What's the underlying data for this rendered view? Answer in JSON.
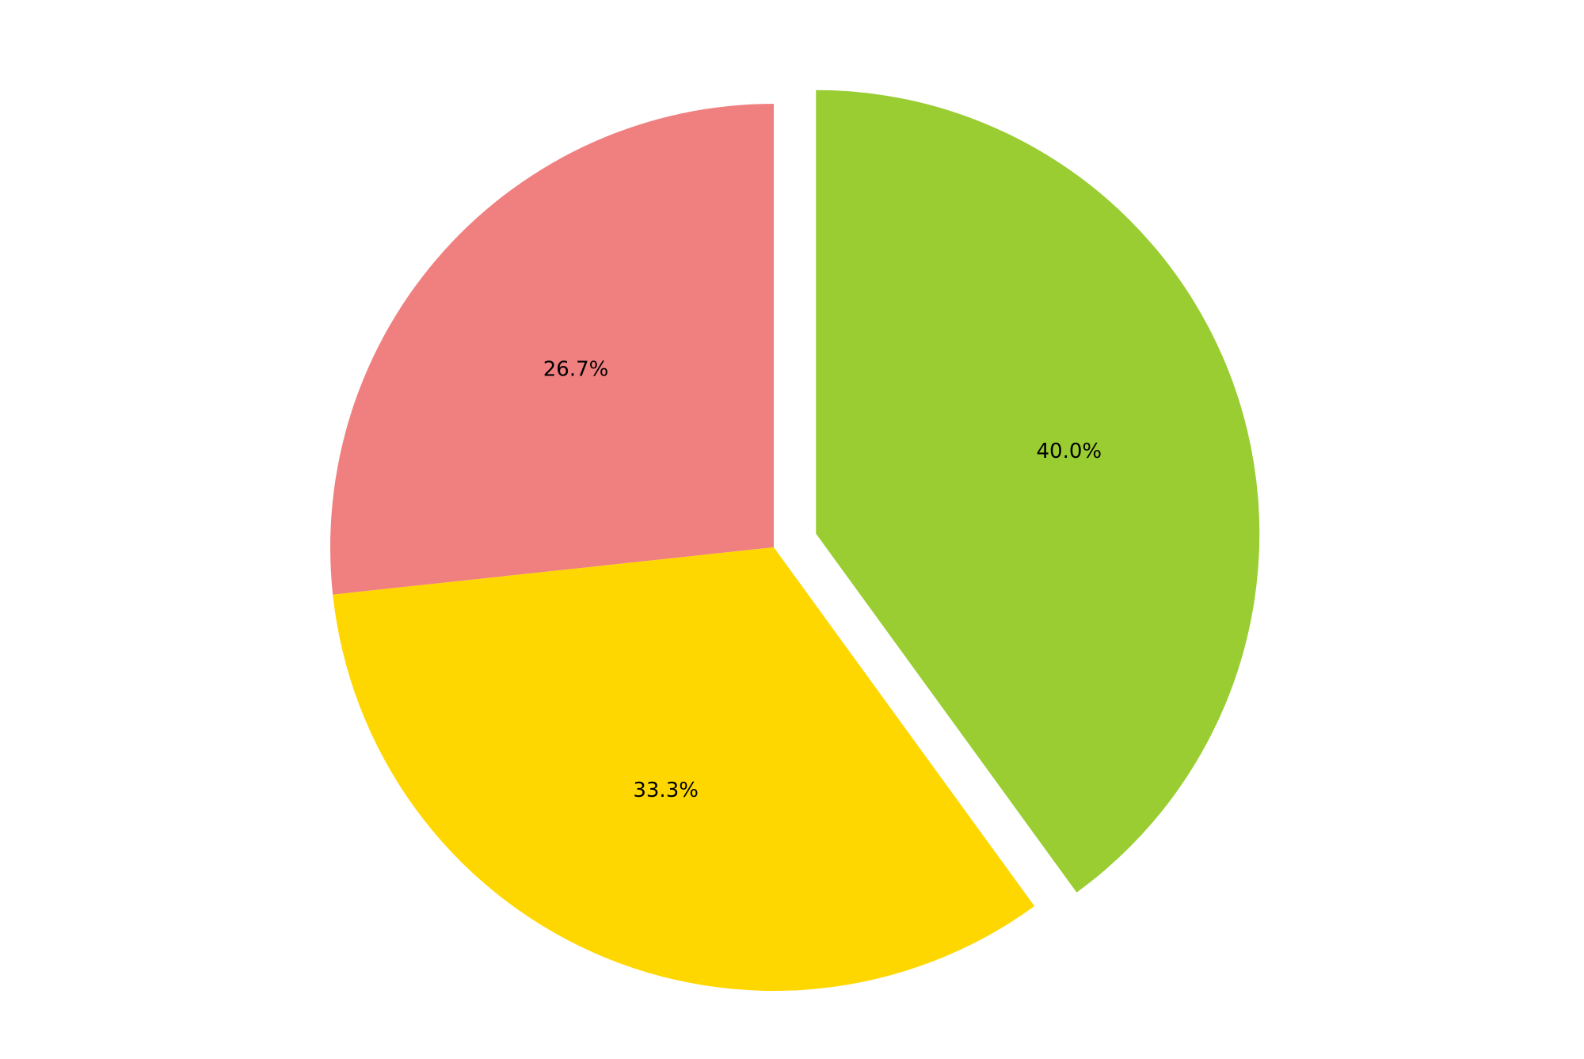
{
  "chart_data": {
    "type": "pie",
    "start_angle_deg": 90,
    "direction": "counterclockwise",
    "slices": [
      {
        "value": 26.7,
        "label": "26.7%",
        "color": "#F08080",
        "exploded": false
      },
      {
        "value": 33.3,
        "label": "33.3%",
        "color": "#FFD700",
        "exploded": false
      },
      {
        "value": 40.0,
        "label": "40.0%",
        "color": "#9ACD32",
        "exploded": true
      }
    ]
  }
}
